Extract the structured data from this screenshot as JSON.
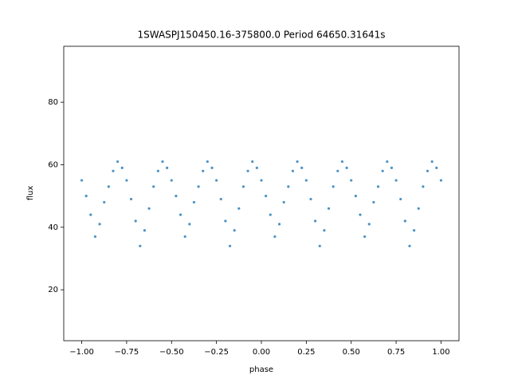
{
  "chart_data": {
    "type": "scatter",
    "title": "1SWASPJ150450.16-375800.0 Period 64650.31641s",
    "x_label": "phase",
    "y_label": "flux",
    "color": "#1f77b4",
    "xlim": [
      -1.1,
      1.1
    ],
    "ylim": [
      3.7,
      97.9
    ],
    "xticks": [
      {
        "value": -1,
        "label": "−1.00"
      },
      {
        "value": -0.75,
        "label": "−0.75"
      },
      {
        "value": -0.5,
        "label": "−0.50"
      },
      {
        "value": -0.25,
        "label": "−0.25"
      },
      {
        "value": 0,
        "label": "0.00"
      },
      {
        "value": 0.25,
        "label": "0.25"
      },
      {
        "value": 0.5,
        "label": "0.50"
      },
      {
        "value": 0.75,
        "label": "0.75"
      },
      {
        "value": 1,
        "label": "1.00"
      }
    ],
    "yticks": [
      20,
      40,
      60,
      80
    ],
    "x": [
      -1,
      -0.975,
      -0.95,
      -0.925,
      -0.9,
      -0.875,
      -0.85,
      -0.825,
      -0.8,
      -0.775,
      -0.75,
      -0.725,
      -0.7,
      -0.675,
      -0.65,
      -0.625,
      -0.6,
      -0.575,
      -0.55,
      -0.525,
      -0.5,
      -0.475,
      -0.45,
      -0.425,
      -0.4,
      -0.375,
      -0.35,
      -0.325,
      -0.3,
      -0.275,
      -0.25,
      -0.225,
      -0.2,
      -0.175,
      -0.15,
      -0.125,
      -0.1,
      -0.075,
      -0.05,
      -0.025,
      0,
      0.025,
      0.05,
      0.075,
      0.1,
      0.125,
      0.15,
      0.175,
      0.2,
      0.225,
      0.25,
      0.275,
      0.3,
      0.325,
      0.35,
      0.375,
      0.4,
      0.425,
      0.45,
      0.475,
      0.5,
      0.525,
      0.55,
      0.575,
      0.6,
      0.625,
      0.65,
      0.675,
      0.7,
      0.725,
      0.75,
      0.775,
      0.8,
      0.825,
      0.85,
      0.875,
      0.9,
      0.925,
      0.95,
      0.975,
      1
    ],
    "values": [
      55,
      50,
      44,
      37,
      41,
      48,
      53,
      58,
      61,
      59,
      55,
      49,
      42,
      34,
      39,
      46,
      53,
      58,
      61,
      59,
      55,
      50,
      44,
      37,
      41,
      48,
      53,
      58,
      61,
      59,
      55,
      49,
      42,
      34,
      39,
      46,
      53,
      58,
      61,
      59,
      55,
      50,
      44,
      37,
      41,
      48,
      53,
      58,
      61,
      59,
      55,
      49,
      42,
      34,
      39,
      46,
      53,
      58,
      61,
      59,
      55,
      50,
      44,
      37,
      41,
      48,
      53,
      58,
      61,
      59,
      55,
      49,
      42,
      34,
      39,
      46,
      53,
      58,
      61,
      59,
      55
    ]
  }
}
